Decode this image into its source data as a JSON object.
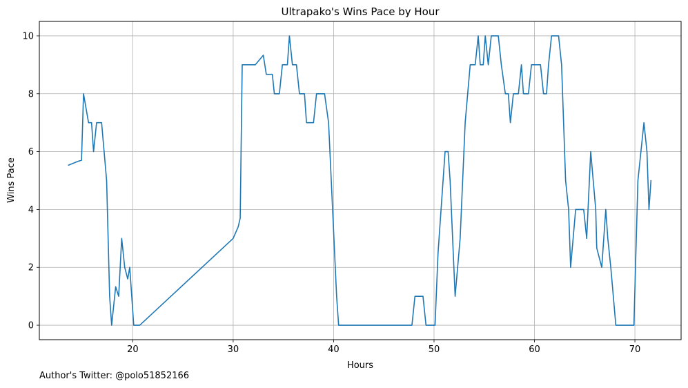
{
  "footer": {
    "note": "Author's Twitter: @polo51852166"
  },
  "chart_data": {
    "type": "line",
    "title": "Ultrapako's Wins Pace by Hour",
    "xlabel": "Hours",
    "ylabel": "Wins Pace",
    "xlim": [
      10.7,
      74.6
    ],
    "ylim": [
      -0.5,
      10.5
    ],
    "xticks": [
      20,
      30,
      40,
      50,
      60,
      70
    ],
    "yticks": [
      0,
      2,
      4,
      6,
      8,
      10
    ],
    "grid": true,
    "line_color": "#1f77b4",
    "series": [
      {
        "x": [
          13.6,
          14.6,
          14.9,
          15.1,
          15.6,
          15.9,
          16.1,
          16.4,
          16.9,
          17.4,
          17.7,
          17.9,
          18.3,
          18.6,
          18.9,
          19.2,
          19.5,
          19.7,
          20.1,
          20.7,
          30.0,
          30.5,
          30.7,
          30.9,
          31.2,
          32.2,
          33.0,
          33.3,
          33.9,
          34.1,
          34.6,
          34.9,
          35.4,
          35.6,
          35.9,
          36.3,
          36.6,
          37.1,
          37.3,
          38.0,
          38.3,
          39.1,
          39.5,
          39.9,
          40.3,
          40.5,
          41.0,
          47.8,
          48.1,
          48.9,
          49.2,
          50.1,
          50.4,
          51.1,
          51.4,
          51.6,
          52.1,
          52.6,
          53.1,
          53.6,
          54.1,
          54.4,
          54.6,
          54.9,
          55.1,
          55.4,
          55.7,
          56.1,
          56.4,
          56.7,
          57.1,
          57.4,
          57.6,
          57.9,
          58.4,
          58.7,
          58.9,
          59.4,
          59.7,
          60.3,
          60.6,
          60.9,
          61.2,
          61.4,
          61.7,
          62.4,
          62.7,
          63.1,
          63.4,
          63.6,
          64.1,
          64.9,
          65.2,
          65.6,
          66.1,
          66.2,
          66.7,
          67.1,
          67.3,
          67.6,
          68.1,
          69.9,
          70.3,
          70.9,
          71.2,
          71.4,
          71.6
        ],
        "y": [
          5.53,
          5.67,
          5.7,
          8.0,
          7.0,
          7.0,
          6.0,
          7.0,
          7.0,
          5.0,
          1.0,
          0.0,
          1.33,
          1.0,
          3.0,
          2.0,
          1.6,
          2.0,
          0.0,
          0.0,
          3.0,
          3.4,
          3.7,
          9.0,
          9.0,
          9.0,
          9.33,
          8.67,
          8.67,
          8.0,
          8.0,
          9.0,
          9.0,
          10.0,
          9.0,
          9.0,
          8.0,
          8.0,
          7.0,
          7.0,
          8.0,
          8.0,
          7.0,
          4.0,
          1.0,
          0.0,
          0.0,
          0.0,
          1.0,
          1.0,
          0.0,
          0.0,
          2.5,
          6.0,
          6.0,
          5.0,
          1.0,
          3.0,
          7.0,
          9.0,
          9.0,
          10.0,
          9.0,
          9.0,
          10.0,
          9.0,
          10.0,
          10.0,
          10.0,
          9.0,
          8.0,
          8.0,
          7.0,
          8.0,
          8.0,
          9.0,
          8.0,
          8.0,
          9.0,
          9.0,
          9.0,
          8.0,
          8.0,
          9.0,
          10.0,
          10.0,
          9.0,
          5.0,
          4.0,
          2.0,
          4.0,
          4.0,
          3.0,
          6.0,
          4.0,
          2.67,
          2.0,
          4.0,
          3.0,
          2.0,
          0.0,
          0.0,
          5.0,
          7.0,
          6.0,
          4.0,
          5.0
        ]
      }
    ]
  }
}
